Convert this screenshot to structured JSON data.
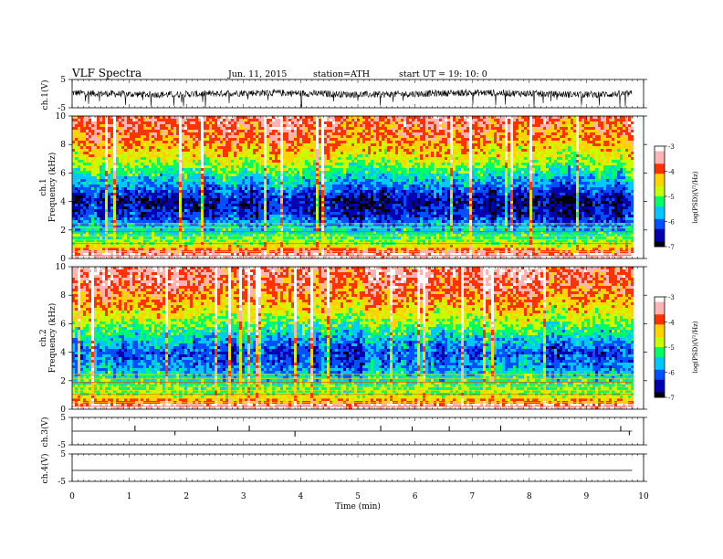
{
  "header": {
    "title": "VLF  Spectra",
    "date": "Jun. 11, 2015",
    "station": "station=ATH",
    "start": "start  UT =   19: 10: 0"
  },
  "chart_data": [
    {
      "type": "line",
      "ylabel": "ch.1(V)",
      "ylim": [
        -5,
        5
      ],
      "yticks": [
        5,
        -5
      ],
      "xlim": [
        0,
        10
      ],
      "data_until_min": 9.8,
      "description_values": {
        "baseline_V": 0.0,
        "noise_amplitude_V": 1.2,
        "max_spike_V": -5
      }
    },
    {
      "type": "heatmap",
      "ylabel": "ch.1",
      "ylabel2": "Frequency  (kHz)",
      "ylim": [
        0,
        10
      ],
      "yticks": [
        0,
        2,
        4,
        6,
        8,
        10
      ],
      "xlim": [
        0,
        10
      ],
      "colorbar": {
        "label": "log(PSD)(V²/Hz)",
        "range": [
          -7,
          -3
        ],
        "ticks": [
          -3,
          -4,
          -5,
          -6,
          -7
        ]
      },
      "spectrum_profile": [
        {
          "freq_kHz": 0.2,
          "level": -3.2
        },
        {
          "freq_kHz": 1.0,
          "level": -4.8
        },
        {
          "freq_kHz": 2.0,
          "level": -5.5
        },
        {
          "freq_kHz": 3.0,
          "level": -6.3
        },
        {
          "freq_kHz": 4.0,
          "level": -6.6
        },
        {
          "freq_kHz": 5.5,
          "level": -5.6
        },
        {
          "freq_kHz": 7.0,
          "level": -4.6
        },
        {
          "freq_kHz": 8.5,
          "level": -3.9
        },
        {
          "freq_kHz": 10.0,
          "level": -3.6
        }
      ]
    },
    {
      "type": "heatmap",
      "ylabel": "ch.2",
      "ylabel2": "Frequency  (kHz)",
      "ylim": [
        0,
        10
      ],
      "yticks": [
        0,
        2,
        4,
        6,
        8,
        10
      ],
      "xlim": [
        0,
        10
      ],
      "colorbar": {
        "label": "log(PSD)(V²/Hz)",
        "range": [
          -7,
          -3
        ],
        "ticks": [
          -3,
          -4,
          -5,
          -6,
          -7
        ]
      },
      "spectrum_profile": [
        {
          "freq_kHz": 0.2,
          "level": -3.2
        },
        {
          "freq_kHz": 1.0,
          "level": -4.9
        },
        {
          "freq_kHz": 2.0,
          "level": -5.3
        },
        {
          "freq_kHz": 3.0,
          "level": -5.9
        },
        {
          "freq_kHz": 4.0,
          "level": -6.2
        },
        {
          "freq_kHz": 5.5,
          "level": -5.3
        },
        {
          "freq_kHz": 7.0,
          "level": -4.4
        },
        {
          "freq_kHz": 8.5,
          "level": -3.8
        },
        {
          "freq_kHz": 10.0,
          "level": -3.5
        }
      ]
    },
    {
      "type": "line",
      "ylabel": "ch.3(V)",
      "ylim": [
        -5,
        5
      ],
      "yticks": [
        5,
        -5
      ],
      "xlim": [
        0,
        10
      ],
      "baseline_V": 0.0,
      "pulse_times_min": [
        1.1,
        1.8,
        2.55,
        3.1,
        3.9,
        5.4,
        5.95,
        6.6,
        7.5,
        9.6,
        9.75
      ],
      "pulse_heights_V": [
        2.0,
        -1.5,
        1.8,
        2.0,
        -2.0,
        2.0,
        1.7,
        1.8,
        2.0,
        1.9,
        -1.5
      ]
    },
    {
      "type": "line",
      "ylabel": "ch.4(V)",
      "ylim": [
        -5,
        5
      ],
      "yticks": [
        5,
        -5
      ],
      "xlim": [
        0,
        10
      ],
      "baseline_V": -1.0
    }
  ],
  "xaxis": {
    "label": "Time  (min)",
    "ticks": [
      "0",
      "1",
      "2",
      "3",
      "4",
      "5",
      "6",
      "7",
      "8",
      "9",
      "10"
    ]
  },
  "colors": {
    "colormap": [
      "#000000",
      "#0000b0",
      "#0050ff",
      "#00c8ff",
      "#00ff64",
      "#c8ff00",
      "#ffd200",
      "#ff3200",
      "#ffb4b4",
      "#ffffff"
    ],
    "trace": "#000000"
  }
}
